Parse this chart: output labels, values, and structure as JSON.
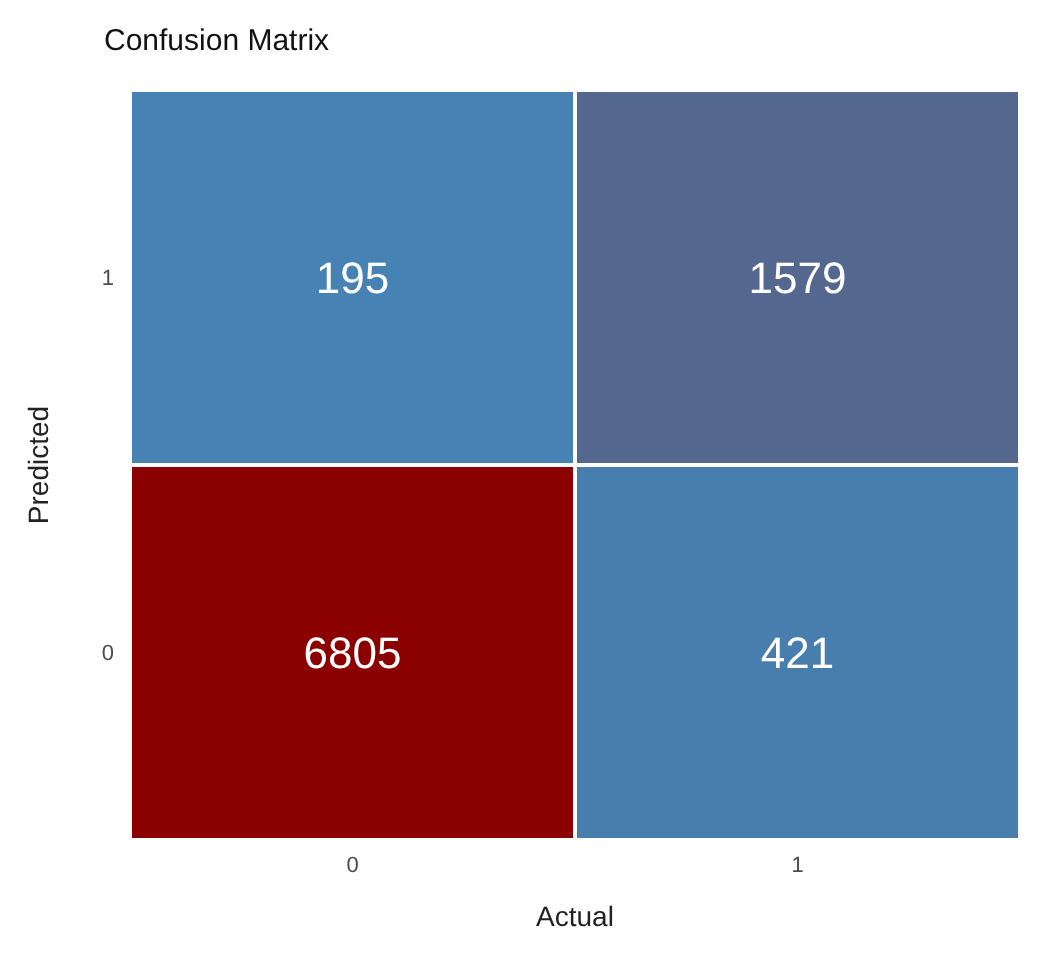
{
  "chart_data": {
    "type": "heatmap",
    "title": "Confusion Matrix",
    "xlabel": "Actual",
    "ylabel": "Predicted",
    "categories": [
      "0",
      "1"
    ],
    "y_categories": [
      "1",
      "0"
    ],
    "cells": [
      [
        195,
        1579
      ],
      [
        6805,
        421
      ]
    ],
    "data_labels": true
  }
}
